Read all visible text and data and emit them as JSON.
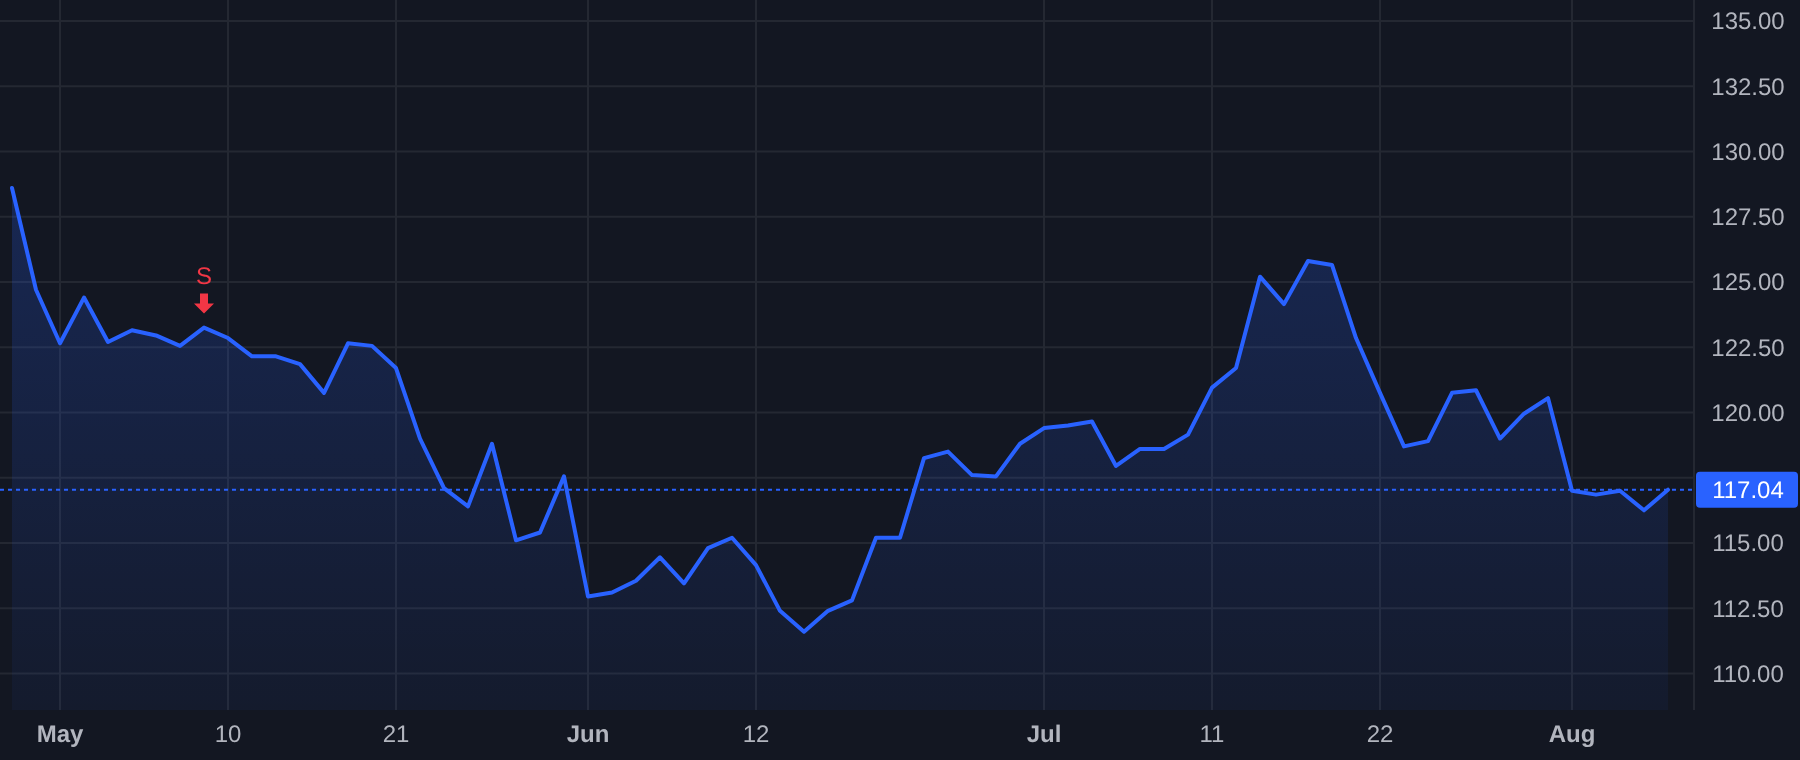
{
  "chart_data": {
    "type": "area",
    "categories": [
      null,
      null,
      "May",
      null,
      null,
      null,
      null,
      null,
      null,
      "10",
      null,
      null,
      null,
      null,
      null,
      null,
      "21",
      null,
      null,
      null,
      null,
      null,
      null,
      null,
      "Jun",
      null,
      null,
      null,
      null,
      null,
      null,
      "12",
      null,
      null,
      null,
      null,
      null,
      null,
      null,
      null,
      null,
      null,
      null,
      "Jul",
      null,
      null,
      null,
      null,
      null,
      null,
      "11",
      null,
      null,
      null,
      null,
      null,
      null,
      "22",
      null,
      null,
      null,
      null,
      null,
      null,
      null,
      "Aug",
      null,
      null,
      null,
      null
    ],
    "series": [
      {
        "color": "#2962ff",
        "values": [
          128.6,
          124.7,
          122.65,
          124.4,
          122.7,
          123.15,
          122.95,
          122.55,
          123.25,
          122.85,
          122.15,
          122.15,
          121.85,
          120.75,
          122.65,
          122.55,
          121.7,
          119.0,
          117.1,
          116.4,
          118.8,
          115.1,
          115.4,
          117.55,
          112.95,
          113.1,
          113.55,
          114.45,
          113.45,
          114.8,
          115.2,
          114.15,
          112.4,
          111.6,
          112.4,
          112.8,
          115.2,
          115.2,
          118.25,
          118.5,
          117.6,
          117.55,
          118.8,
          119.4,
          119.5,
          119.65,
          117.95,
          118.6,
          118.6,
          119.15,
          120.95,
          121.7,
          125.2,
          124.15,
          125.8,
          125.65,
          122.85,
          120.75,
          118.7,
          118.9,
          120.75,
          120.85,
          119.0,
          119.95,
          120.55,
          117.0,
          116.85,
          117.0,
          116.25,
          117.04
        ]
      }
    ],
    "ylim": [
      108.6,
      135.8
    ],
    "yticks": [
      {
        "value": 110,
        "label": "110.00"
      },
      {
        "value": 112.5,
        "label": "112.50"
      },
      {
        "value": 115,
        "label": "115.00"
      },
      {
        "value": 117.5,
        "label": null
      },
      {
        "value": 120,
        "label": "120.00"
      },
      {
        "value": 122.5,
        "label": "122.50"
      },
      {
        "value": 125,
        "label": "125.00"
      },
      {
        "value": 127.5,
        "label": "127.50"
      },
      {
        "value": 130,
        "label": "130.00"
      },
      {
        "value": 132.5,
        "label": "132.50"
      },
      {
        "value": 135,
        "label": "135.00"
      }
    ],
    "grid": true,
    "ref_lines": [
      {
        "axis": "y",
        "value": 117.04,
        "label": "117.04",
        "color": "#2962ff",
        "line_style": "dotted"
      }
    ],
    "annotations": [
      {
        "text": "S",
        "y": 123.25
      }
    ]
  }
}
